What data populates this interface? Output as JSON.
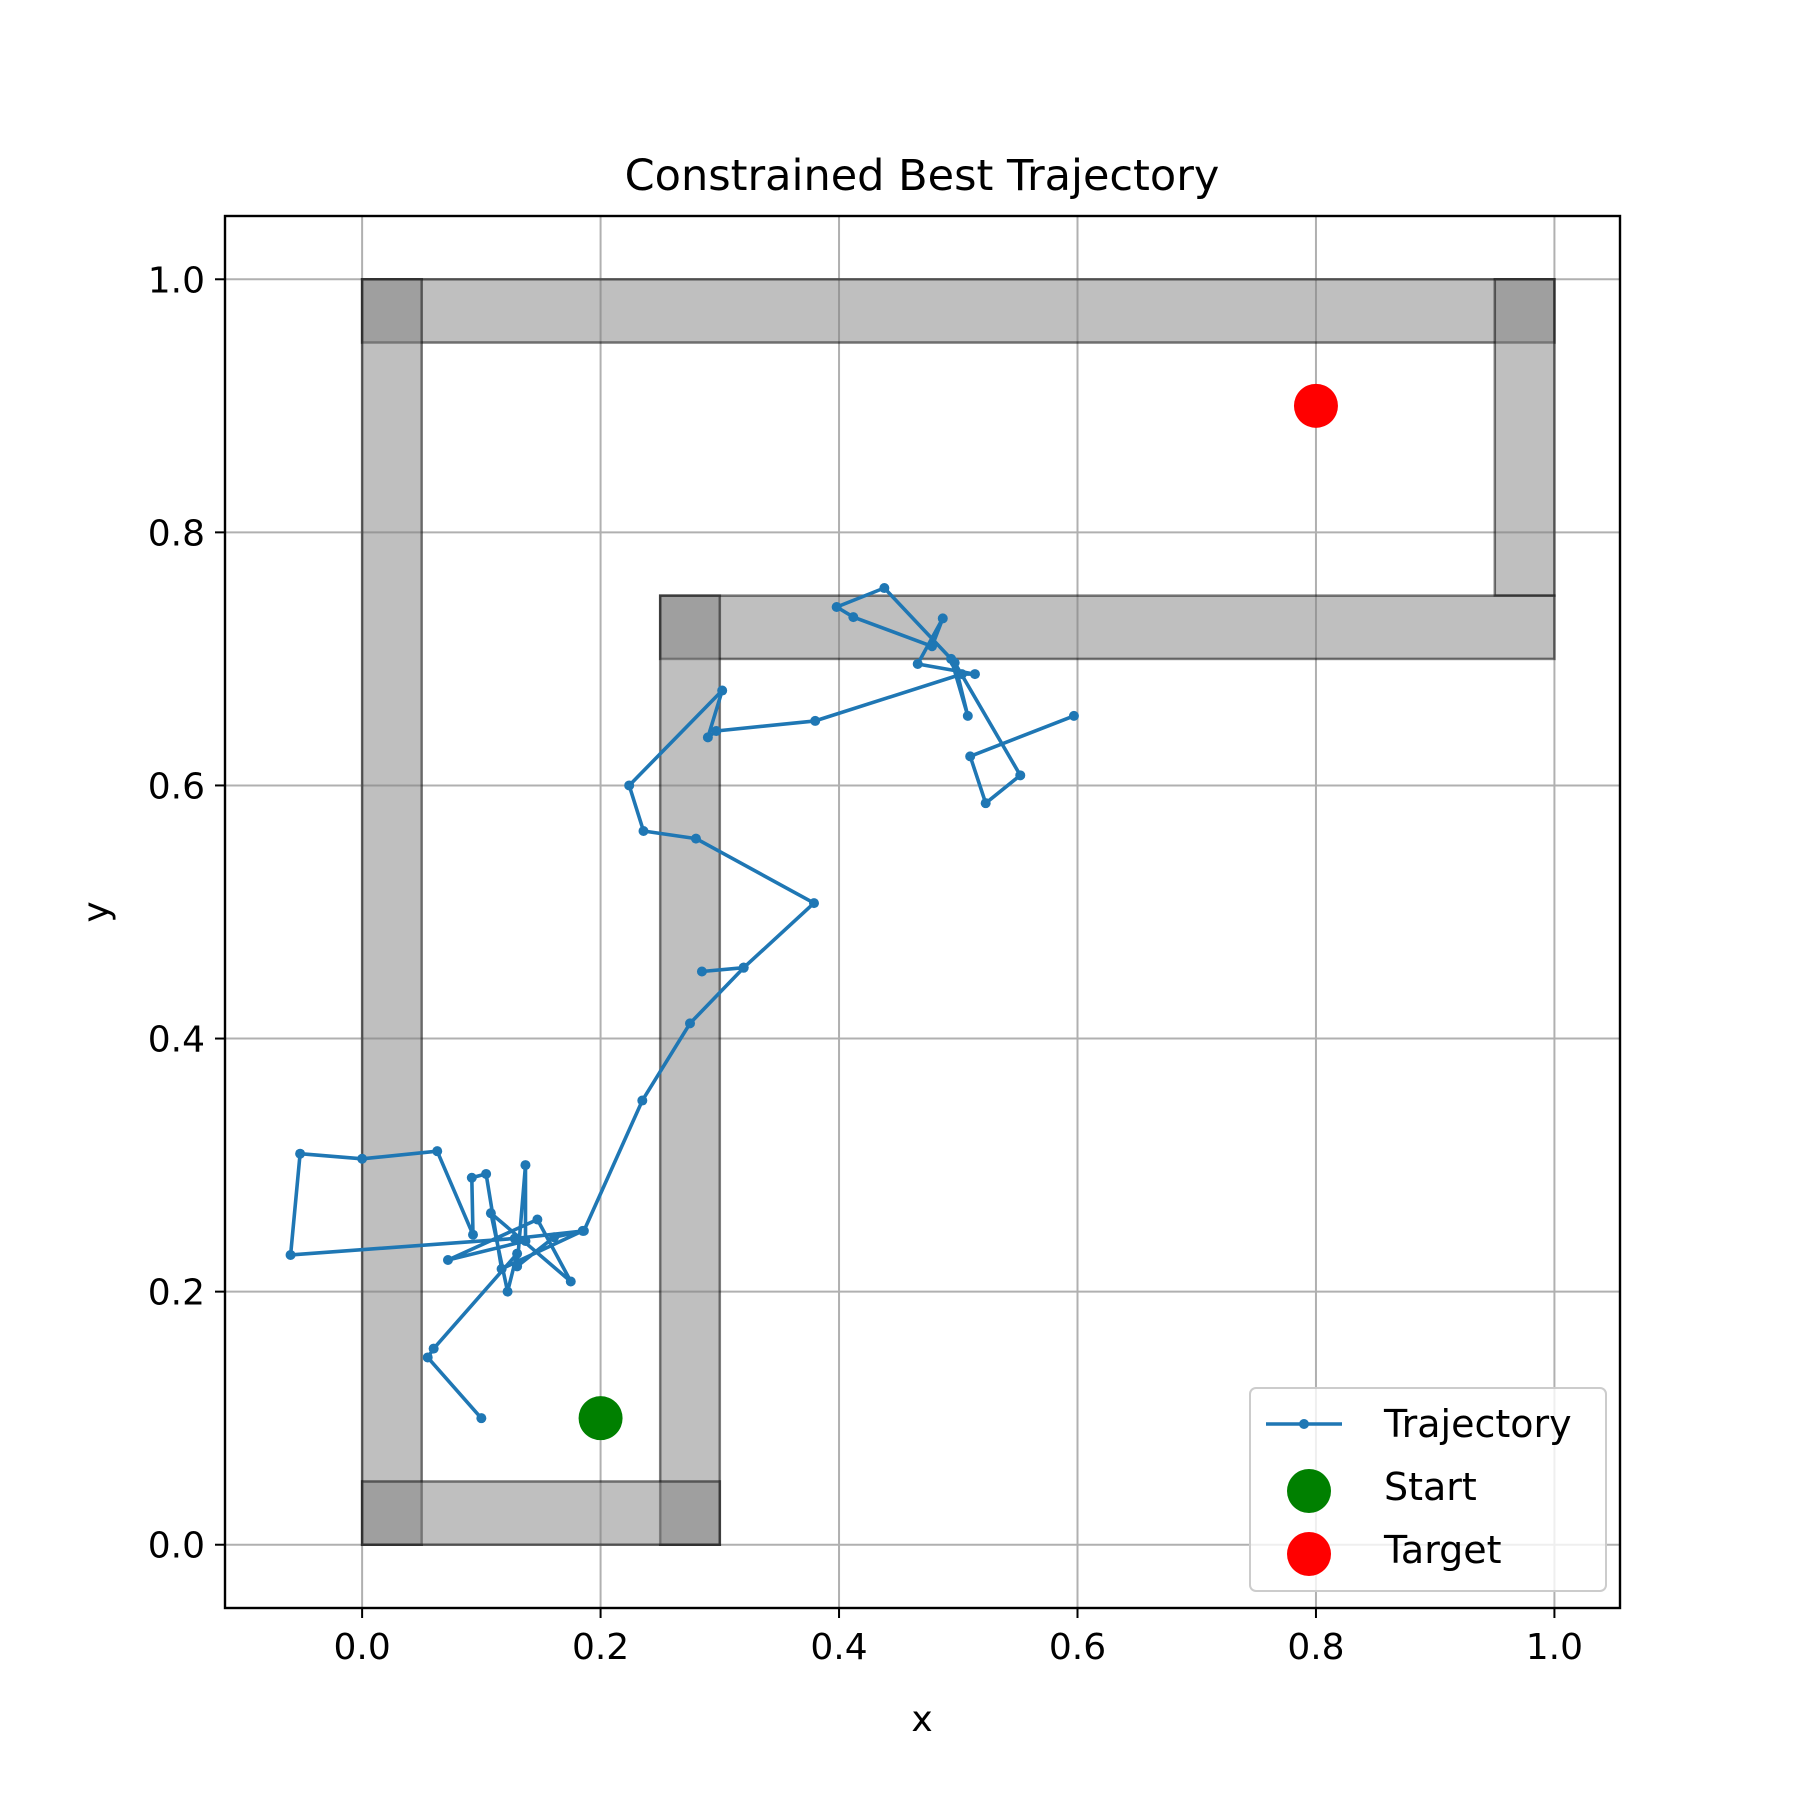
{
  "chart_data": {
    "type": "line",
    "title": "Constrained Best Trajectory",
    "xlabel": "x",
    "ylabel": "y",
    "xlim": [
      -0.115,
      1.055
    ],
    "ylim": [
      -0.05,
      1.05
    ],
    "xticks": [
      0.0,
      0.2,
      0.4,
      0.6,
      0.8,
      1.0
    ],
    "yticks": [
      0.0,
      0.2,
      0.4,
      0.6,
      0.8,
      1.0
    ],
    "xtick_labels": [
      "0.0",
      "0.2",
      "0.4",
      "0.6",
      "0.8",
      "1.0"
    ],
    "ytick_labels": [
      "0.0",
      "0.2",
      "0.4",
      "0.6",
      "0.8",
      "1.0"
    ],
    "grid": true,
    "legend_position": "bottom-right",
    "walls": [
      {
        "x0": 0.0,
        "y0": 0.95,
        "x1": 1.0,
        "y1": 1.0
      },
      {
        "x0": 0.0,
        "y0": 0.0,
        "x1": 0.05,
        "y1": 1.0
      },
      {
        "x0": 0.95,
        "y0": 0.75,
        "x1": 1.0,
        "y1": 1.0
      },
      {
        "x0": 0.25,
        "y0": 0.7,
        "x1": 1.0,
        "y1": 0.75
      },
      {
        "x0": 0.25,
        "y0": 0.0,
        "x1": 0.3,
        "y1": 0.75
      },
      {
        "x0": 0.0,
        "y0": 0.0,
        "x1": 0.3,
        "y1": 0.05
      }
    ],
    "series": [
      {
        "name": "Trajectory",
        "kind": "line-markers",
        "color": "#1f77b4",
        "points": [
          [
            0.1,
            0.1
          ],
          [
            0.055,
            0.148
          ],
          [
            0.06,
            0.155
          ],
          [
            0.13,
            0.23
          ],
          [
            0.122,
            0.2
          ],
          [
            0.108,
            0.262
          ],
          [
            0.175,
            0.208
          ],
          [
            0.147,
            0.257
          ],
          [
            0.072,
            0.225
          ],
          [
            0.137,
            0.24
          ],
          [
            0.137,
            0.3
          ],
          [
            0.13,
            0.22
          ],
          [
            0.161,
            0.243
          ],
          [
            0.185,
            0.248
          ],
          [
            0.117,
            0.218
          ],
          [
            0.104,
            0.293
          ],
          [
            0.092,
            0.29
          ],
          [
            0.093,
            0.245
          ],
          [
            0.063,
            0.311
          ],
          [
            0.0,
            0.305
          ],
          [
            -0.052,
            0.309
          ],
          [
            -0.06,
            0.229
          ],
          [
            0.128,
            0.242
          ],
          [
            0.186,
            0.248
          ],
          [
            0.235,
            0.351
          ],
          [
            0.275,
            0.412
          ],
          [
            0.32,
            0.456
          ],
          [
            0.285,
            0.453
          ],
          [
            0.32,
            0.456
          ],
          [
            0.379,
            0.507
          ],
          [
            0.28,
            0.558
          ],
          [
            0.236,
            0.564
          ],
          [
            0.224,
            0.6
          ],
          [
            0.302,
            0.675
          ],
          [
            0.29,
            0.638
          ],
          [
            0.297,
            0.643
          ],
          [
            0.38,
            0.651
          ],
          [
            0.503,
            0.688
          ],
          [
            0.514,
            0.688
          ],
          [
            0.466,
            0.696
          ],
          [
            0.487,
            0.732
          ],
          [
            0.478,
            0.71
          ],
          [
            0.412,
            0.733
          ],
          [
            0.398,
            0.741
          ],
          [
            0.438,
            0.756
          ],
          [
            0.494,
            0.7
          ],
          [
            0.508,
            0.655
          ],
          [
            0.497,
            0.697
          ],
          [
            0.552,
            0.608
          ],
          [
            0.523,
            0.586
          ],
          [
            0.51,
            0.623
          ],
          [
            0.597,
            0.655
          ]
        ]
      },
      {
        "name": "Start",
        "kind": "scatter",
        "color": "#008000",
        "points": [
          [
            0.2,
            0.1
          ]
        ]
      },
      {
        "name": "Target",
        "kind": "scatter",
        "color": "#ff0000",
        "points": [
          [
            0.8,
            0.9
          ]
        ]
      }
    ]
  }
}
